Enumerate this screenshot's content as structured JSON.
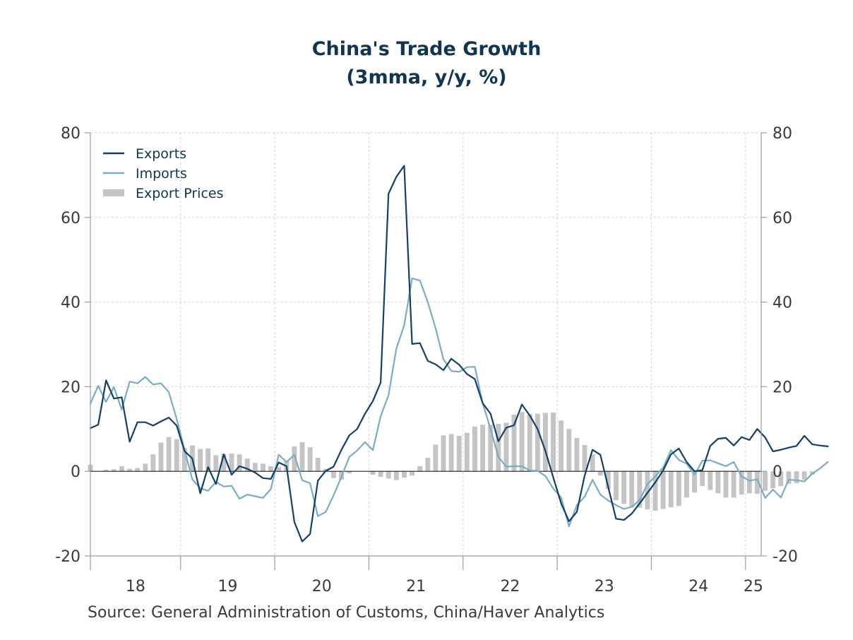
{
  "chart_data": {
    "type": "line",
    "title": "China's Trade Growth",
    "subtitle": "(3mma, y/y, %)",
    "source": "Source:  General Administration of Customs, China/Haver Analytics",
    "x_start": "2018-01",
    "x_end": "2025-02",
    "x_ticks": [
      "18",
      "19",
      "20",
      "21",
      "22",
      "23",
      "24",
      "25"
    ],
    "y_ticks": [
      "80",
      "60",
      "40",
      "20",
      "0",
      "-20"
    ],
    "ylim": [
      -20,
      80
    ],
    "grid": true,
    "legend_position": "top-left",
    "legend": [
      "Exports",
      "Imports",
      "Export Prices"
    ],
    "colors": {
      "exports": "#143f66",
      "imports": "#7aacc3",
      "export_prices": "#c4c4c4",
      "title": "#0f3550",
      "axis": "#8ea1ae"
    },
    "series": [
      {
        "name": "Exports",
        "type": "line",
        "values": [
          10.2,
          11.0,
          21.5,
          17.2,
          17.5,
          7.0,
          11.6,
          11.6,
          10.8,
          11.8,
          12.7,
          10.8,
          4.8,
          3.0,
          -5.2,
          1.0,
          -3.0,
          4.0,
          -0.8,
          1.2,
          0.6,
          -0.3,
          -1.6,
          -1.8,
          2.1,
          1.2,
          -12.0,
          -16.6,
          -14.8,
          -2.2,
          0.1,
          1.1,
          5.1,
          8.5,
          10.0,
          13.6,
          16.6,
          21.0,
          65.6,
          69.6,
          72.2,
          30.1,
          30.3,
          26.1,
          25.3,
          23.9,
          26.6,
          25.2,
          23.0,
          21.8,
          16.1,
          13.6,
          7.1,
          10.3,
          10.9,
          15.8,
          13.2,
          10.0,
          4.8,
          -1.5,
          -7.6,
          -11.8,
          -9.6,
          -1.0,
          5.1,
          3.9,
          -3.7,
          -11.2,
          -11.5,
          -10.0,
          -7.6,
          -5.1,
          -2.6,
          0.2,
          4.0,
          5.4,
          2.2,
          0.0,
          0.3,
          6.0,
          7.7,
          7.9,
          6.1,
          8.1,
          7.4,
          10.0,
          8.0,
          4.7,
          5.1,
          5.6,
          6.0,
          8.4,
          6.4,
          6.1,
          5.9
        ]
      },
      {
        "name": "Imports",
        "type": "line",
        "values": [
          16.0,
          20.2,
          16.4,
          19.9,
          14.6,
          21.2,
          20.8,
          22.3,
          20.5,
          20.8,
          18.7,
          12.4,
          5.1,
          -1.9,
          -4.0,
          -4.6,
          -2.5,
          -3.6,
          -3.4,
          -6.5,
          -5.5,
          -5.9,
          -6.3,
          -4.2,
          3.9,
          2.2,
          3.9,
          -2.1,
          -2.8,
          -10.6,
          -9.6,
          -5.7,
          -1.3,
          3.4,
          4.9,
          6.9,
          5.0,
          13.0,
          18.0,
          29.0,
          34.5,
          45.6,
          45.1,
          40.0,
          33.8,
          26.5,
          23.7,
          23.5,
          24.6,
          24.7,
          16.1,
          10.0,
          3.4,
          1.1,
          1.2,
          1.2,
          0.2,
          0.1,
          -1.1,
          -4.1,
          -6.2,
          -13.0,
          -8.0,
          -6.0,
          -2.0,
          -5.5,
          -6.9,
          -8.0,
          -8.9,
          -8.4,
          -6.8,
          -3.0,
          -1.2,
          0.9,
          5.0,
          2.7,
          1.8,
          -0.8,
          2.5,
          2.6,
          1.9,
          1.2,
          2.2,
          -1.2,
          -2.2,
          -1.9,
          -6.3,
          -4.3,
          -6.2,
          -2.0,
          -2.1,
          -2.4,
          -0.6,
          0.7,
          2.2
        ]
      },
      {
        "name": "Export Prices",
        "type": "bar",
        "values": [
          1.5,
          0.0,
          0.4,
          0.5,
          1.2,
          0.6,
          0.8,
          1.8,
          4.0,
          6.8,
          8.1,
          7.6,
          5.5,
          6.1,
          5.3,
          5.4,
          3.8,
          4.1,
          4.2,
          4.0,
          3.0,
          2.0,
          1.8,
          1.2,
          1.0,
          2.5,
          5.9,
          6.9,
          5.7,
          3.2,
          0.6,
          -1.6,
          -2.0,
          -0.5,
          0.0,
          0.0,
          -0.8,
          -1.3,
          -1.7,
          -2.1,
          -1.5,
          -1.0,
          1.2,
          3.2,
          6.3,
          8.5,
          8.8,
          8.4,
          9.1,
          10.6,
          11.0,
          11.0,
          11.2,
          11.5,
          13.4,
          14.0,
          13.5,
          13.6,
          13.8,
          13.9,
          12.0,
          10.0,
          7.9,
          6.2,
          4.0,
          -1.0,
          -4.2,
          -6.8,
          -7.7,
          -8.5,
          -8.6,
          -9.0,
          -9.3,
          -8.9,
          -8.5,
          -8.2,
          -6.2,
          -5.0,
          -3.5,
          -4.4,
          -5.2,
          -6.2,
          -6.2,
          -5.5,
          -5.2,
          -5.3,
          -4.6,
          -4.0,
          -3.5,
          -3.0,
          -2.8,
          -2.0,
          -0.8,
          0.0
        ]
      }
    ]
  }
}
